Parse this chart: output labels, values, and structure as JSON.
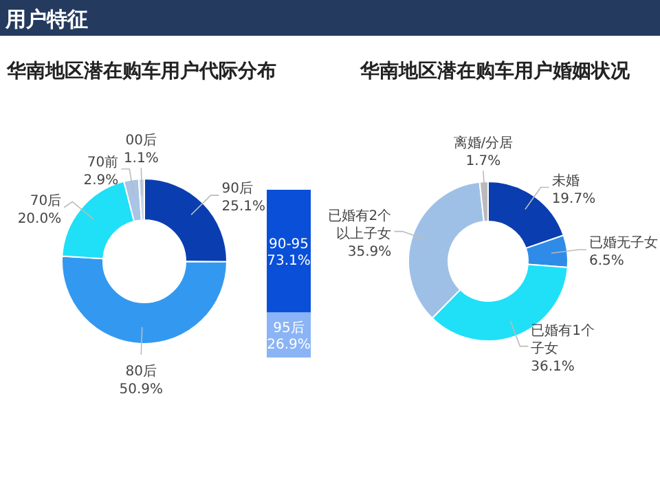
{
  "chart_data": [
    {
      "type": "other",
      "title": "用户特征"
    },
    {
      "type": "donut",
      "title": "华南地区潜在购车用户代际分布",
      "categories": [
        "90后",
        "80后",
        "70后",
        "70前",
        "00后"
      ],
      "values": [
        25.1,
        50.9,
        20.0,
        2.9,
        1.1
      ],
      "value_labels": [
        "25.1%",
        "50.9%",
        "20.0%",
        "2.9%",
        "1.1%"
      ],
      "colors": [
        "#0a3db0",
        "#3399f0",
        "#1fe0f7",
        "#a9c4e4",
        "#c8d6e8"
      ]
    },
    {
      "type": "bar",
      "stacked": true,
      "categories": [
        null
      ],
      "series": [
        {
          "name": "95后",
          "color": "#8ab4f5",
          "values": [
            26.9
          ],
          "value_labels": [
            "26.9%"
          ]
        },
        {
          "name": "90-95",
          "color": "#0a4fd8",
          "values": [
            73.1
          ],
          "value_labels": [
            "73.1%"
          ]
        }
      ]
    },
    {
      "type": "donut",
      "title": "华南地区潜在购车用户婚姻状况",
      "categories": [
        "未婚",
        "已婚无子女",
        "已婚有1个子女",
        "已婚有2个以上子女",
        "离婚/分居"
      ],
      "values": [
        19.7,
        6.5,
        36.1,
        35.9,
        1.7
      ],
      "value_labels": [
        "19.7%",
        "6.5%",
        "36.1%",
        "35.9%",
        "1.7%"
      ],
      "colors": [
        "#0a3db0",
        "#2f8be8",
        "#1fe0f7",
        "#9fc0e6",
        "#bbbbbb"
      ]
    }
  ]
}
